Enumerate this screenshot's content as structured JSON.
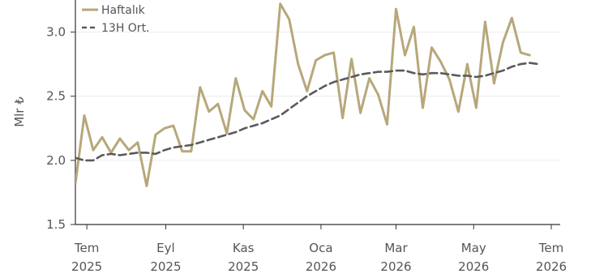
{
  "chart_data": {
    "type": "line",
    "ylabel": "Mlr ₺",
    "ylim": [
      1.5,
      3.25
    ],
    "yticks": [
      "1.5",
      "2.0",
      "2.5",
      "3.0"
    ],
    "xlim": [
      "2025-06-22",
      "2026-07-08"
    ],
    "xticks": [
      {
        "date": "2025-07-01",
        "label_top": "Tem",
        "label_bottom": "2025"
      },
      {
        "date": "2025-09-01",
        "label_top": "Eyl",
        "label_bottom": "2025"
      },
      {
        "date": "2025-11-01",
        "label_top": "Kas",
        "label_bottom": "2025"
      },
      {
        "date": "2026-01-01",
        "label_top": "Oca",
        "label_bottom": "2026"
      },
      {
        "date": "2026-03-01",
        "label_top": "Mar",
        "label_bottom": "2026"
      },
      {
        "date": "2026-05-01",
        "label_top": "May",
        "label_bottom": "2026"
      },
      {
        "date": "2026-07-01",
        "label_top": "Tem",
        "label_bottom": "2026"
      }
    ],
    "grid": "horizontal",
    "legend_position": "top-left",
    "colors": {
      "weekly": "#b7a77a",
      "ma": "#5a5a5a"
    },
    "series": [
      {
        "name": "Haftalık",
        "style": "solid",
        "x": [
          "2025-06-22",
          "2025-06-29",
          "2025-07-06",
          "2025-07-13",
          "2025-07-20",
          "2025-07-27",
          "2025-08-03",
          "2025-08-10",
          "2025-08-17",
          "2025-08-24",
          "2025-08-31",
          "2025-09-07",
          "2025-09-14",
          "2025-09-21",
          "2025-09-28",
          "2025-10-05",
          "2025-10-12",
          "2025-10-19",
          "2025-10-26",
          "2025-11-02",
          "2025-11-09",
          "2025-11-16",
          "2025-11-23",
          "2025-11-30",
          "2025-12-07",
          "2025-12-14",
          "2025-12-21",
          "2025-12-28",
          "2026-01-04",
          "2026-01-11",
          "2026-01-18",
          "2026-01-25",
          "2026-02-01",
          "2026-02-08",
          "2026-02-15",
          "2026-02-22",
          "2026-03-01",
          "2026-03-08",
          "2026-03-15",
          "2026-03-22",
          "2026-03-29",
          "2026-04-05",
          "2026-04-12",
          "2026-04-19",
          "2026-04-26",
          "2026-05-03",
          "2026-05-10",
          "2026-05-17",
          "2026-05-24",
          "2026-05-31",
          "2026-06-07",
          "2026-06-14"
        ],
        "values": [
          1.82,
          2.35,
          2.08,
          2.18,
          2.06,
          2.17,
          2.08,
          2.14,
          1.8,
          2.2,
          2.25,
          2.27,
          2.07,
          2.07,
          2.57,
          2.38,
          2.44,
          2.21,
          2.64,
          2.39,
          2.32,
          2.54,
          2.42,
          3.22,
          3.1,
          2.75,
          2.54,
          2.78,
          2.82,
          2.84,
          2.33,
          2.79,
          2.37,
          2.64,
          2.51,
          2.28,
          3.18,
          2.82,
          3.04,
          2.41,
          2.88,
          2.77,
          2.63,
          2.38,
          2.75,
          2.41,
          3.08,
          2.6,
          2.92,
          3.11,
          2.84,
          2.82
        ]
      },
      {
        "name": "13H Ort.",
        "style": "dashed",
        "x": [
          "2025-06-22",
          "2025-06-29",
          "2025-07-06",
          "2025-07-13",
          "2025-07-20",
          "2025-07-27",
          "2025-08-03",
          "2025-08-10",
          "2025-08-17",
          "2025-08-24",
          "2025-08-31",
          "2025-09-07",
          "2025-09-14",
          "2025-09-21",
          "2025-09-28",
          "2025-10-05",
          "2025-10-12",
          "2025-10-19",
          "2025-10-26",
          "2025-11-02",
          "2025-11-09",
          "2025-11-16",
          "2025-11-23",
          "2025-11-30",
          "2025-12-07",
          "2025-12-14",
          "2025-12-21",
          "2025-12-28",
          "2026-01-04",
          "2026-01-11",
          "2026-01-18",
          "2026-01-25",
          "2026-02-01",
          "2026-02-08",
          "2026-02-15",
          "2026-02-22",
          "2026-03-01",
          "2026-03-08",
          "2026-03-15",
          "2026-03-22",
          "2026-03-29",
          "2026-04-05",
          "2026-04-12",
          "2026-04-19",
          "2026-04-26",
          "2026-05-03",
          "2026-05-10",
          "2026-05-17",
          "2026-05-24",
          "2026-05-31",
          "2026-06-07",
          "2026-06-14",
          "2026-06-21"
        ],
        "values": [
          2.02,
          2.0,
          2.0,
          2.04,
          2.05,
          2.04,
          2.05,
          2.06,
          2.06,
          2.05,
          2.08,
          2.1,
          2.11,
          2.12,
          2.14,
          2.16,
          2.18,
          2.2,
          2.22,
          2.25,
          2.27,
          2.29,
          2.32,
          2.35,
          2.4,
          2.45,
          2.5,
          2.54,
          2.58,
          2.61,
          2.63,
          2.65,
          2.67,
          2.68,
          2.69,
          2.69,
          2.7,
          2.7,
          2.68,
          2.67,
          2.68,
          2.68,
          2.67,
          2.66,
          2.66,
          2.65,
          2.66,
          2.68,
          2.7,
          2.73,
          2.75,
          2.76,
          2.75
        ]
      }
    ]
  }
}
